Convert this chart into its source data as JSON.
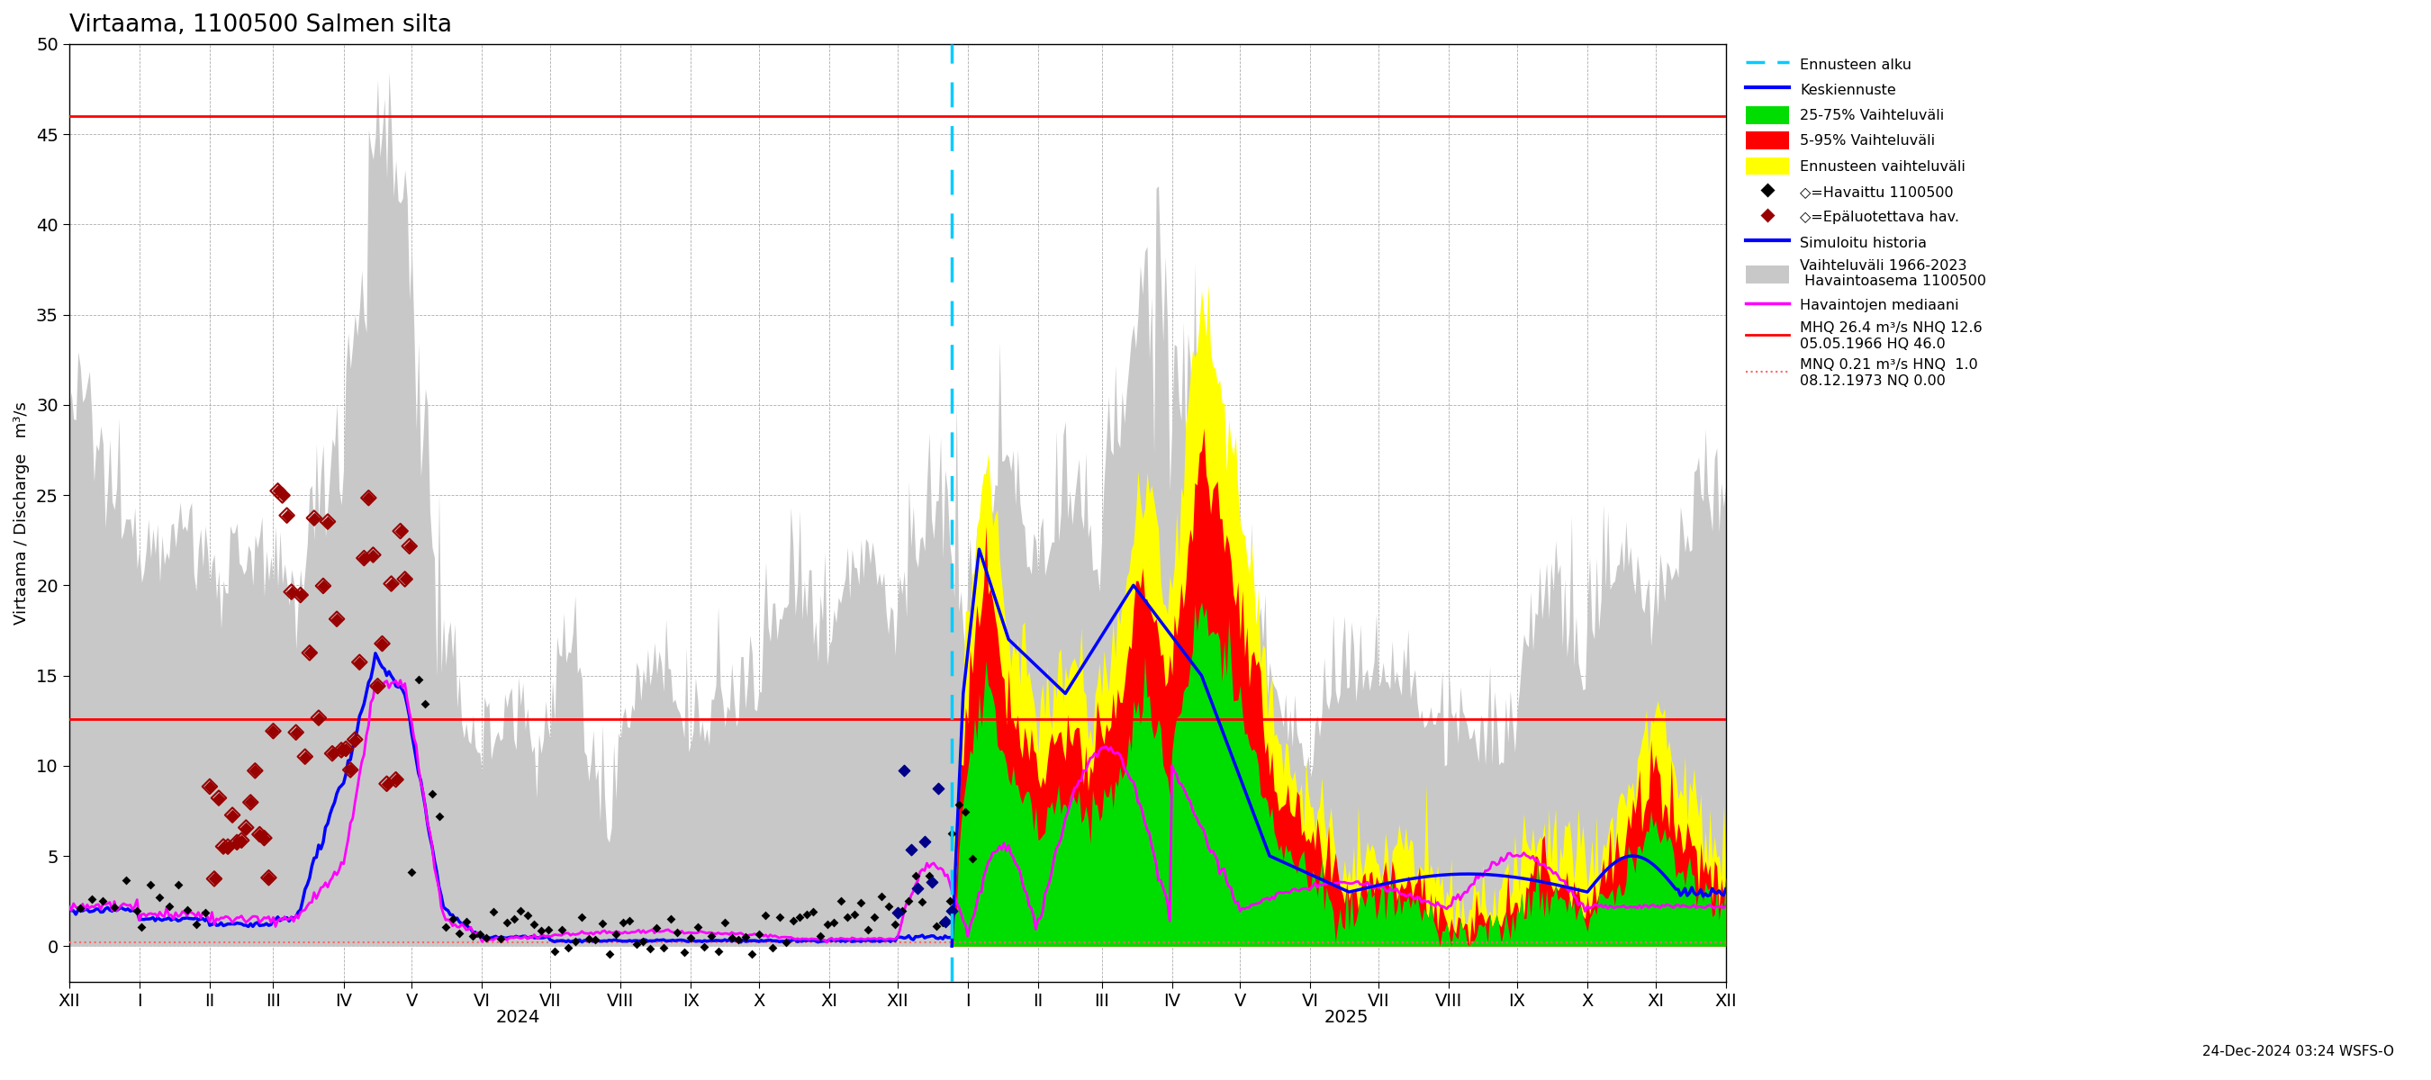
{
  "title": "Virtaama, 1100500 Salmen silta",
  "ylabel": "Virtaama / Discharge   m³/s",
  "ylim": [
    -2,
    50
  ],
  "yticks": [
    0,
    5,
    10,
    15,
    20,
    25,
    30,
    35,
    40,
    45,
    50
  ],
  "hline_HQ": 46.0,
  "hline_MHQ": 12.6,
  "colors": {
    "gray_fill": "#c8c8c8",
    "yellow_fill": "#ffff00",
    "red_fill": "#ff0000",
    "green_fill": "#00dd00",
    "blue_line": "#0000ff",
    "magenta_line": "#ff00ff",
    "cyan_dashed": "#00ccff",
    "black_diamonds": "#000000",
    "dark_red_diamonds": "#990000",
    "dark_blue_diamonds": "#000088",
    "hline_color": "#ff0000",
    "hline_MNQ_color": "#ff6666"
  },
  "footer_text": "24-Dec-2024 03:24 WSFS-O"
}
